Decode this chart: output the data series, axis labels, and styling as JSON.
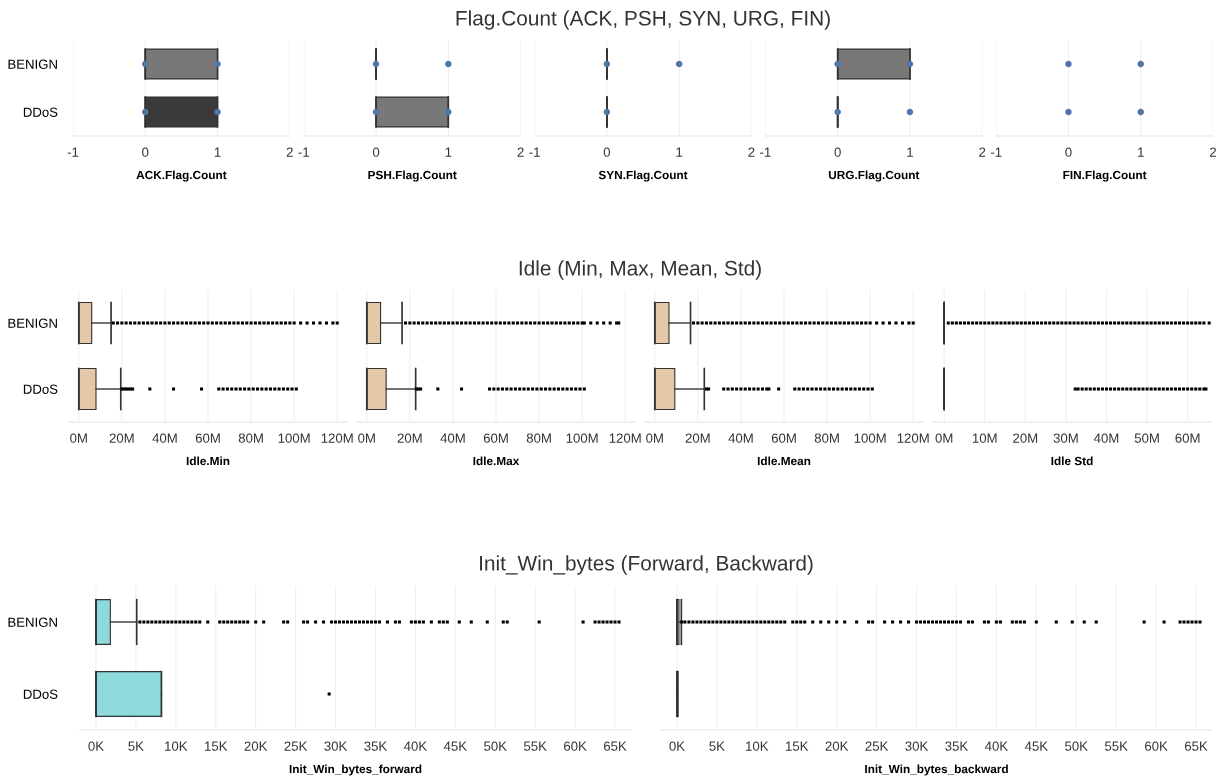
{
  "chart_data": [
    {
      "type": "other",
      "title": "Flag.Count (ACK, PSH, SYN, URG, FIN)"
    },
    {
      "type": "box",
      "grid": "x",
      "orientation": "horizontal",
      "categories": [
        "BENIGN",
        "DDoS"
      ],
      "xlabel": "ACK.Flag.Count",
      "xlim": [
        -1,
        2
      ],
      "xticks": [
        -1,
        0,
        1,
        2
      ],
      "colors": [
        "#787878",
        "#3a3a3a"
      ],
      "boxes": [
        {
          "low": 0,
          "q1": 0,
          "median": 0,
          "q3": 1,
          "high": 1
        },
        {
          "low": 0,
          "q1": 0,
          "median": 0,
          "q3": 1,
          "high": 1
        }
      ],
      "series": [
        {
          "type": "scatter",
          "color": "#4e79a7",
          "x": [
            "BENIGN",
            "BENIGN",
            "DDoS",
            "DDoS"
          ],
          "values": [
            0,
            1,
            0,
            1
          ]
        }
      ]
    },
    {
      "type": "box",
      "grid": "x",
      "orientation": "horizontal",
      "categories": [
        "BENIGN",
        "DDoS"
      ],
      "xlabel": "PSH.Flag.Count",
      "xlim": [
        -1,
        2
      ],
      "xticks": [
        -1,
        0,
        1,
        2
      ],
      "tick_labels": "x",
      "colors": [
        "#333333",
        "#787878"
      ],
      "boxes": [
        {
          "low": 0,
          "q1": 0,
          "median": 0,
          "q3": 0,
          "high": 0
        },
        {
          "low": 0,
          "q1": 0,
          "median": 0,
          "q3": 1,
          "high": 1
        }
      ],
      "series": [
        {
          "type": "scatter",
          "color": "#4e79a7",
          "x": [
            "BENIGN",
            "BENIGN",
            "DDoS",
            "DDoS"
          ],
          "values": [
            0,
            1,
            0,
            1
          ]
        }
      ]
    },
    {
      "type": "box",
      "grid": "x",
      "orientation": "horizontal",
      "categories": [
        "BENIGN",
        "DDoS"
      ],
      "xlabel": "SYN.Flag.Count",
      "xlim": [
        -1,
        2
      ],
      "xticks": [
        -1,
        0,
        1,
        2
      ],
      "tick_labels": "x",
      "colors": [
        "#333333",
        "#333333"
      ],
      "boxes": [
        {
          "low": 0,
          "q1": 0,
          "median": 0,
          "q3": 0,
          "high": 0
        },
        {
          "low": 0,
          "q1": 0,
          "median": 0,
          "q3": 0,
          "high": 0
        }
      ],
      "series": [
        {
          "type": "scatter",
          "color": "#4e79a7",
          "x": [
            "BENIGN",
            "BENIGN",
            "DDoS"
          ],
          "values": [
            0,
            1,
            0
          ]
        }
      ]
    },
    {
      "type": "box",
      "grid": "x",
      "orientation": "horizontal",
      "categories": [
        "BENIGN",
        "DDoS"
      ],
      "xlabel": "URG.Flag.Count",
      "xlim": [
        -1,
        2
      ],
      "xticks": [
        -1,
        0,
        1,
        2
      ],
      "tick_labels": "x",
      "colors": [
        "#787878",
        "#333333"
      ],
      "boxes": [
        {
          "low": 0,
          "q1": 0,
          "median": 0,
          "q3": 1,
          "high": 1
        },
        {
          "low": 0,
          "q1": 0,
          "median": 0,
          "q3": 0,
          "high": 0
        }
      ],
      "series": [
        {
          "type": "scatter",
          "color": "#4e79a7",
          "x": [
            "BENIGN",
            "BENIGN",
            "DDoS",
            "DDoS"
          ],
          "values": [
            0,
            1,
            0,
            1
          ]
        }
      ]
    },
    {
      "type": "box",
      "grid": "x",
      "orientation": "horizontal",
      "categories": [
        "BENIGN",
        "DDoS"
      ],
      "xlabel": "FIN.Flag.Count",
      "xlim": [
        -1,
        2
      ],
      "xticks": [
        -1,
        0,
        1,
        2
      ],
      "tick_labels": "x",
      "boxes": [
        null,
        null
      ],
      "series": [
        {
          "type": "scatter",
          "color": "#4e79a7",
          "x": [
            "BENIGN",
            "BENIGN",
            "DDoS",
            "DDoS"
          ],
          "values": [
            0,
            1,
            0,
            1
          ]
        }
      ]
    },
    {
      "type": "other",
      "title": "Idle (Min, Max, Mean, Std)"
    },
    {
      "type": "box",
      "grid": "x",
      "orientation": "horizontal",
      "categories": [
        "BENIGN",
        "DDoS"
      ],
      "xlabel": "Idle.Min",
      "xlim": [
        -5,
        125
      ],
      "xticks": [
        {
          "value": 0,
          "label": "0M"
        },
        {
          "value": 20,
          "label": "20M"
        },
        {
          "value": 40,
          "label": "40M"
        },
        {
          "value": 60,
          "label": "60M"
        },
        {
          "value": 80,
          "label": "80M"
        },
        {
          "value": 100,
          "label": "100M"
        },
        {
          "value": 120,
          "label": "120M"
        }
      ],
      "colors": [
        "#e3c9a8",
        "#e3c9a8"
      ],
      "boxes": [
        {
          "low": 0,
          "q1": 0,
          "median": 0,
          "q3": 6,
          "high": 15,
          "outliers": [
            16,
            18,
            20,
            22,
            24,
            26,
            28,
            30,
            32,
            34,
            36,
            38,
            40,
            42,
            44,
            46,
            48,
            50,
            52,
            54,
            56,
            58,
            60,
            62,
            64,
            66,
            68,
            70,
            72,
            74,
            76,
            78,
            80,
            82,
            84,
            86,
            88,
            90,
            92,
            94,
            96,
            98,
            100,
            103,
            106,
            109,
            112,
            115,
            118,
            120
          ]
        },
        {
          "low": 0,
          "q1": 0,
          "median": 0,
          "q3": 8,
          "high": 19.5,
          "outliers": [
            20,
            21,
            22,
            23,
            24,
            25,
            33,
            44,
            57,
            65,
            67,
            69,
            71,
            73,
            75,
            77,
            79,
            81,
            83,
            85,
            87,
            89,
            91,
            93,
            95,
            97,
            99,
            101
          ]
        }
      ]
    },
    {
      "type": "box",
      "grid": "x",
      "orientation": "horizontal",
      "categories": [
        "BENIGN",
        "DDoS"
      ],
      "xlabel": "Idle.Max",
      "xlim": [
        -5,
        125
      ],
      "xticks": [
        {
          "value": 0,
          "label": "0M"
        },
        {
          "value": 20,
          "label": "20M"
        },
        {
          "value": 40,
          "label": "40M"
        },
        {
          "value": 60,
          "label": "60M"
        },
        {
          "value": 80,
          "label": "80M"
        },
        {
          "value": 100,
          "label": "100M"
        },
        {
          "value": 120,
          "label": "120M"
        }
      ],
      "tick_labels": "x",
      "colors": [
        "#e3c9a8",
        "#e3c9a8"
      ],
      "boxes": [
        {
          "low": 0,
          "q1": 0,
          "median": 0,
          "q3": 6.4,
          "high": 16.4,
          "outliers": [
            18,
            20,
            22,
            24,
            26,
            28,
            30,
            32,
            34,
            36,
            38,
            40,
            42,
            44,
            46,
            48,
            50,
            52,
            54,
            56,
            58,
            60,
            62,
            64,
            66,
            68,
            70,
            72,
            74,
            76,
            78,
            80,
            82,
            84,
            86,
            88,
            90,
            92,
            94,
            96,
            98,
            100,
            101,
            104,
            107,
            110,
            113,
            116,
            117
          ]
        },
        {
          "low": 0,
          "q1": 0,
          "median": 0,
          "q3": 9,
          "high": 22.7,
          "outliers": [
            23,
            24,
            25,
            33,
            44,
            57,
            59,
            61,
            63,
            65,
            67,
            69,
            71,
            73,
            75,
            77,
            79,
            81,
            83,
            85,
            87,
            89,
            91,
            93,
            95,
            97,
            99,
            101
          ]
        }
      ]
    },
    {
      "type": "box",
      "grid": "x",
      "orientation": "horizontal",
      "categories": [
        "BENIGN",
        "DDoS"
      ],
      "xlabel": "Idle.Mean",
      "xlim": [
        -5,
        125
      ],
      "xticks": [
        {
          "value": 0,
          "label": "0M"
        },
        {
          "value": 20,
          "label": "20M"
        },
        {
          "value": 40,
          "label": "40M"
        },
        {
          "value": 60,
          "label": "60M"
        },
        {
          "value": 80,
          "label": "80M"
        },
        {
          "value": 100,
          "label": "100M"
        },
        {
          "value": 120,
          "label": "120M"
        }
      ],
      "tick_labels": "x",
      "colors": [
        "#e3c9a8",
        "#e3c9a8"
      ],
      "boxes": [
        {
          "low": 0,
          "q1": 0,
          "median": 0,
          "q3": 6.6,
          "high": 16.6,
          "outliers": [
            18,
            20,
            22,
            24,
            26,
            28,
            30,
            32,
            34,
            36,
            38,
            40,
            42,
            44,
            46,
            48,
            50,
            52,
            54,
            56,
            58,
            60,
            62,
            64,
            66,
            68,
            70,
            72,
            74,
            76,
            78,
            80,
            82,
            84,
            86,
            88,
            90,
            92,
            94,
            96,
            98,
            100,
            103,
            106,
            109,
            112,
            115,
            118,
            120
          ]
        },
        {
          "low": 0,
          "q1": 0,
          "median": 0,
          "q3": 9.3,
          "high": 23,
          "outliers": [
            24,
            25,
            32,
            34,
            36,
            38,
            40,
            42,
            44,
            46,
            48,
            50,
            52,
            53,
            57.5,
            65,
            67,
            69,
            71,
            73,
            75,
            77,
            79,
            81,
            83,
            85,
            87,
            89,
            91,
            93,
            95,
            97,
            99,
            101
          ]
        }
      ]
    },
    {
      "type": "box",
      "grid": "x",
      "orientation": "horizontal",
      "categories": [
        "BENIGN",
        "DDoS"
      ],
      "xlabel": "Idle Std",
      "xlim": [
        -3,
        66
      ],
      "xticks": [
        {
          "value": 0,
          "label": "0M"
        },
        {
          "value": 10,
          "label": "10M"
        },
        {
          "value": 20,
          "label": "20M"
        },
        {
          "value": 30,
          "label": "30M"
        },
        {
          "value": 40,
          "label": "40M"
        },
        {
          "value": 50,
          "label": "50M"
        },
        {
          "value": 60,
          "label": "60M"
        }
      ],
      "tick_labels": "x",
      "colors": [
        "#333333",
        "#333333"
      ],
      "boxes": [
        {
          "low": 0,
          "q1": 0,
          "median": 0,
          "q3": 0,
          "high": 0,
          "outliers": [
            1,
            2,
            3,
            4,
            5,
            6,
            7,
            8,
            9,
            10,
            11,
            12,
            13,
            14,
            15,
            16,
            17,
            18,
            19,
            20,
            21,
            22,
            23,
            24,
            25,
            26,
            27,
            28,
            29,
            30,
            31,
            32,
            33,
            34,
            35,
            36,
            37,
            38,
            39,
            40,
            41,
            42,
            43,
            44,
            45,
            46,
            47,
            48,
            49,
            50,
            51,
            52,
            53,
            54,
            55,
            56,
            57,
            58,
            59,
            60,
            61,
            62,
            63,
            64,
            65.3
          ]
        },
        {
          "low": 0,
          "q1": 0,
          "median": 0,
          "q3": 0,
          "high": 0,
          "outliers": [
            32.3,
            33,
            34,
            35,
            36,
            37,
            38,
            39,
            40,
            41,
            42,
            43,
            44,
            45,
            46,
            47,
            48,
            49,
            50,
            51,
            52,
            53,
            54,
            55,
            56,
            57,
            58,
            59,
            60,
            61,
            62,
            63,
            64,
            64.5
          ]
        }
      ]
    },
    {
      "type": "other",
      "title": "Init_Win_bytes (Forward, Backward)"
    },
    {
      "type": "box",
      "grid": "x",
      "orientation": "horizontal",
      "categories": [
        "BENIGN",
        "DDoS"
      ],
      "xlabel": "Init_Win_bytes_forward",
      "xlim": [
        -2,
        67
      ],
      "xticks": [
        {
          "value": 0,
          "label": "0K"
        },
        {
          "value": 5,
          "label": "5K"
        },
        {
          "value": 10,
          "label": "10K"
        },
        {
          "value": 15,
          "label": "15K"
        },
        {
          "value": 20,
          "label": "20K"
        },
        {
          "value": 25,
          "label": "25K"
        },
        {
          "value": 30,
          "label": "30K"
        },
        {
          "value": 35,
          "label": "35K"
        },
        {
          "value": 40,
          "label": "40K"
        },
        {
          "value": 45,
          "label": "45K"
        },
        {
          "value": 50,
          "label": "50K"
        },
        {
          "value": 55,
          "label": "55K"
        },
        {
          "value": 60,
          "label": "60K"
        },
        {
          "value": 65,
          "label": "65K"
        }
      ],
      "colors": [
        "#8dd9dc",
        "#8dd9dc"
      ],
      "boxes": [
        {
          "low": 0,
          "q1": 0,
          "median": 0,
          "q3": 1.8,
          "high": 5.1,
          "outliers": [
            5.5,
            6,
            6.5,
            7,
            7.5,
            8,
            8.5,
            9,
            9.5,
            10,
            10.5,
            11,
            11.5,
            12,
            12.5,
            13,
            14,
            15.5,
            16,
            16.5,
            17,
            17.5,
            18,
            18.5,
            19,
            20,
            21,
            23.5,
            24,
            26,
            26.5,
            27.5,
            28.5,
            29.5,
            30,
            30.5,
            31,
            31.5,
            32,
            32.5,
            33,
            33.5,
            34,
            34.5,
            35,
            35.5,
            36.5,
            37.5,
            38,
            39.5,
            40,
            40.5,
            41,
            42,
            43,
            43.5,
            44,
            45.5,
            47,
            49,
            51,
            51.5,
            55.5,
            61,
            62.5,
            63,
            63.5,
            64,
            64.5,
            65,
            65.5
          ]
        },
        {
          "low": 0,
          "q1": 0,
          "median": 0,
          "q3": 8.2,
          "high": 8.2,
          "outliers": [
            29.2
          ]
        }
      ]
    },
    {
      "type": "box",
      "grid": "x",
      "orientation": "horizontal",
      "categories": [
        "BENIGN",
        "DDoS"
      ],
      "xlabel": "Init_Win_bytes_backward",
      "xlim": [
        -2,
        67
      ],
      "xticks": [
        {
          "value": 0,
          "label": "0K"
        },
        {
          "value": 5,
          "label": "5K"
        },
        {
          "value": 10,
          "label": "10K"
        },
        {
          "value": 15,
          "label": "15K"
        },
        {
          "value": 20,
          "label": "20K"
        },
        {
          "value": 25,
          "label": "25K"
        },
        {
          "value": 30,
          "label": "30K"
        },
        {
          "value": 35,
          "label": "35K"
        },
        {
          "value": 40,
          "label": "40K"
        },
        {
          "value": 45,
          "label": "45K"
        },
        {
          "value": 50,
          "label": "50K"
        },
        {
          "value": 55,
          "label": "55K"
        },
        {
          "value": 60,
          "label": "60K"
        },
        {
          "value": 65,
          "label": "65K"
        }
      ],
      "tick_labels": "x",
      "colors": [
        "#8dd9dc",
        "#2f7f83"
      ],
      "boxes": [
        {
          "low": 0,
          "q1": 0,
          "median": 0,
          "q3": 0.25,
          "high": 0.55,
          "outliers": [
            0.6,
            1,
            1.5,
            2,
            2.5,
            3,
            3.5,
            4,
            4.5,
            5,
            5.5,
            6,
            6.5,
            7,
            7.5,
            8,
            8.5,
            9,
            9.5,
            10,
            10.5,
            11,
            11.5,
            12,
            12.5,
            13,
            13.5,
            14.5,
            15,
            15.5,
            16,
            17,
            18,
            19,
            20,
            21,
            22.5,
            24,
            24.5,
            26,
            27,
            28,
            29,
            30,
            30.5,
            31,
            31.5,
            32,
            32.5,
            33,
            33.5,
            34,
            34.5,
            35,
            35.5,
            36.5,
            37,
            38.5,
            39,
            40,
            40.5,
            42,
            42.5,
            43,
            43.5,
            45,
            47.5,
            49.5,
            51,
            52.5,
            58.5,
            61,
            63,
            63.5,
            64,
            64.5,
            65,
            65.5
          ]
        },
        {
          "low": 0,
          "q1": 0,
          "median": 0,
          "q3": 0.1,
          "high": 0.1
        }
      ]
    }
  ]
}
